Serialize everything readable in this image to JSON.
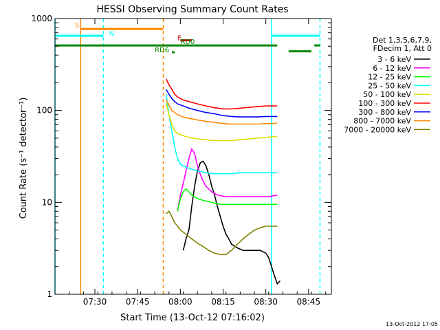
{
  "chart_data": {
    "type": "line",
    "title": "HESSI Observing Summary Count Rates",
    "xlabel": "Start Time (13-Oct-12 07:16:02)",
    "ylabel": "Count Rate (s⁻¹ detector⁻¹)",
    "y_scale": "log",
    "xlim_minutes_after_0716": [
      0,
      97
    ],
    "ylim": [
      1,
      1000
    ],
    "x_ticks": [
      {
        "label": "07:30",
        "t": 14
      },
      {
        "label": "07:45",
        "t": 29
      },
      {
        "label": "08:00",
        "t": 44
      },
      {
        "label": "08:15",
        "t": 59
      },
      {
        "label": "08:30",
        "t": 74
      },
      {
        "label": "08:45",
        "t": 89
      }
    ],
    "y_ticks": [
      {
        "label": "1",
        "value": 1
      },
      {
        "label": "10",
        "value": 10
      },
      {
        "label": "100",
        "value": 100
      },
      {
        "label": "1000",
        "value": 1000
      }
    ],
    "legend_header": [
      "Det 1,3,5,6,7,9,",
      "FDecim 1, Att 0"
    ],
    "legend_placement": "right",
    "series": [
      {
        "name": "3 - 6 keV",
        "color": "#000000",
        "points": [
          [
            45,
            3
          ],
          [
            46,
            4
          ],
          [
            47,
            5
          ],
          [
            48,
            9
          ],
          [
            49,
            15
          ],
          [
            50,
            22
          ],
          [
            51,
            27
          ],
          [
            52,
            28
          ],
          [
            53,
            25
          ],
          [
            54,
            20
          ],
          [
            55,
            15
          ],
          [
            56,
            12
          ],
          [
            57,
            9
          ],
          [
            58,
            7
          ],
          [
            59,
            5.5
          ],
          [
            60,
            4.5
          ],
          [
            61,
            4
          ],
          [
            62,
            3.5
          ],
          [
            64,
            3.2
          ],
          [
            66,
            3
          ],
          [
            68,
            3
          ],
          [
            70,
            3
          ],
          [
            72,
            3
          ],
          [
            74,
            2.8
          ],
          [
            75,
            2.5
          ],
          [
            76,
            2
          ],
          [
            77,
            1.6
          ],
          [
            78,
            1.3
          ],
          [
            79,
            1.4
          ]
        ]
      },
      {
        "name": "6 - 12 keV",
        "color": "#ff00ff",
        "points": [
          [
            43,
            8
          ],
          [
            44,
            12
          ],
          [
            45,
            16
          ],
          [
            46,
            22
          ],
          [
            47,
            30
          ],
          [
            48,
            38
          ],
          [
            49,
            34
          ],
          [
            50,
            25
          ],
          [
            51,
            20
          ],
          [
            52,
            17
          ],
          [
            53,
            15
          ],
          [
            55,
            13
          ],
          [
            57,
            12
          ],
          [
            60,
            11.5
          ],
          [
            63,
            11.5
          ],
          [
            66,
            11.5
          ],
          [
            69,
            11.5
          ],
          [
            72,
            11.5
          ],
          [
            75,
            11.5
          ],
          [
            78,
            12
          ]
        ]
      },
      {
        "name": "12 - 25 keV",
        "color": "#00ff00",
        "points": [
          [
            43,
            8
          ],
          [
            44,
            11
          ],
          [
            45,
            13
          ],
          [
            46,
            14
          ],
          [
            47,
            13
          ],
          [
            48,
            12
          ],
          [
            50,
            11
          ],
          [
            52,
            10.5
          ],
          [
            55,
            10
          ],
          [
            58,
            9.5
          ],
          [
            61,
            9.5
          ],
          [
            64,
            9.5
          ],
          [
            67,
            9.5
          ],
          [
            70,
            9.5
          ],
          [
            73,
            9.5
          ],
          [
            76,
            9.5
          ],
          [
            78,
            9.5
          ]
        ]
      },
      {
        "name": "25 - 50 keV",
        "color": "#00ffff",
        "points": [
          [
            39,
            150
          ],
          [
            40,
            90
          ],
          [
            41,
            60
          ],
          [
            42,
            40
          ],
          [
            43,
            30
          ],
          [
            44,
            26
          ],
          [
            45,
            25
          ],
          [
            46,
            24
          ],
          [
            48,
            23
          ],
          [
            50,
            22
          ],
          [
            53,
            21
          ],
          [
            56,
            20.5
          ],
          [
            59,
            20.5
          ],
          [
            62,
            20.5
          ],
          [
            65,
            21
          ],
          [
            68,
            21
          ],
          [
            71,
            21
          ],
          [
            74,
            21
          ],
          [
            77,
            21
          ],
          [
            78,
            21
          ]
        ]
      },
      {
        "name": "50 - 100 keV",
        "color": "#dddd00",
        "points": [
          [
            39,
            120
          ],
          [
            40,
            90
          ],
          [
            41,
            70
          ],
          [
            42,
            60
          ],
          [
            43,
            56
          ],
          [
            45,
            53
          ],
          [
            47,
            51
          ],
          [
            50,
            49
          ],
          [
            53,
            48
          ],
          [
            56,
            47
          ],
          [
            59,
            47
          ],
          [
            62,
            47
          ],
          [
            65,
            48
          ],
          [
            68,
            49
          ],
          [
            71,
            50
          ],
          [
            74,
            51
          ],
          [
            77,
            52
          ],
          [
            78,
            52
          ]
        ]
      },
      {
        "name": "100 - 300 keV",
        "color": "#ff0000",
        "points": [
          [
            39,
            220
          ],
          [
            40,
            190
          ],
          [
            41,
            170
          ],
          [
            42,
            150
          ],
          [
            43,
            140
          ],
          [
            45,
            130
          ],
          [
            47,
            125
          ],
          [
            50,
            118
          ],
          [
            53,
            112
          ],
          [
            56,
            107
          ],
          [
            59,
            104
          ],
          [
            62,
            104
          ],
          [
            65,
            106
          ],
          [
            68,
            108
          ],
          [
            71,
            110
          ],
          [
            74,
            112
          ],
          [
            77,
            112
          ],
          [
            78,
            112
          ]
        ]
      },
      {
        "name": "300 - 800 keV",
        "color": "#0000ff",
        "points": [
          [
            39,
            170
          ],
          [
            40,
            150
          ],
          [
            41,
            135
          ],
          [
            42,
            125
          ],
          [
            43,
            118
          ],
          [
            45,
            112
          ],
          [
            47,
            106
          ],
          [
            50,
            100
          ],
          [
            53,
            95
          ],
          [
            56,
            92
          ],
          [
            59,
            88
          ],
          [
            62,
            86
          ],
          [
            65,
            85
          ],
          [
            68,
            85
          ],
          [
            71,
            85
          ],
          [
            74,
            86
          ],
          [
            77,
            86
          ],
          [
            78,
            86
          ]
        ]
      },
      {
        "name": "800 - 7000 keV",
        "color": "#ff8800",
        "points": [
          [
            39,
            130
          ],
          [
            40,
            115
          ],
          [
            41,
            100
          ],
          [
            42,
            95
          ],
          [
            43,
            90
          ],
          [
            45,
            85
          ],
          [
            47,
            82
          ],
          [
            50,
            79
          ],
          [
            53,
            76
          ],
          [
            56,
            74
          ],
          [
            59,
            72
          ],
          [
            62,
            71
          ],
          [
            65,
            71
          ],
          [
            68,
            71
          ],
          [
            71,
            71
          ],
          [
            74,
            72
          ],
          [
            77,
            72
          ],
          [
            78,
            73
          ]
        ]
      },
      {
        "name": "7000 - 20000 keV",
        "color": "#808000",
        "points": [
          [
            39,
            7.5
          ],
          [
            40,
            8
          ],
          [
            41,
            7
          ],
          [
            42,
            6
          ],
          [
            43,
            5.5
          ],
          [
            44,
            5
          ],
          [
            46,
            4.5
          ],
          [
            48,
            4
          ],
          [
            50,
            3.6
          ],
          [
            52,
            3.3
          ],
          [
            54,
            3
          ],
          [
            56,
            2.8
          ],
          [
            58,
            2.7
          ],
          [
            60,
            2.7
          ],
          [
            62,
            3
          ],
          [
            64,
            3.5
          ],
          [
            66,
            4
          ],
          [
            68,
            4.5
          ],
          [
            70,
            5
          ],
          [
            72,
            5.3
          ],
          [
            74,
            5.5
          ],
          [
            76,
            5.5
          ],
          [
            78,
            5.5
          ]
        ]
      }
    ],
    "annotations": [
      {
        "text": "S",
        "color": "#ff8800",
        "t": 7,
        "y": 800
      },
      {
        "text": "N",
        "color": "#00ffff",
        "t": 19,
        "y": 650
      },
      {
        "text": "F",
        "color": "#cc0000",
        "t": 43,
        "y": 580
      },
      {
        "text": "RD6",
        "color": "#008800",
        "t": 35,
        "y": 430
      },
      {
        "text": "RD0",
        "color": "#008800",
        "t": 44,
        "y": 530
      }
    ],
    "state_bars": [
      {
        "color": "#ff8800",
        "t0": 9,
        "t1": 38,
        "y": 770
      },
      {
        "color": "#00ffff",
        "t0": 0,
        "t1": 17,
        "y": 650
      },
      {
        "color": "#00ffff",
        "t0": 76,
        "t1": 93,
        "y": 650
      },
      {
        "color": "#008800",
        "t0": 0,
        "t1": 78,
        "y": 510
      },
      {
        "color": "#008800",
        "t0": 82,
        "t1": 90,
        "y": 440
      },
      {
        "color": "#008800",
        "t0": 91,
        "t1": 93,
        "y": 510
      },
      {
        "color": "#cc0000",
        "t0": 44,
        "t1": 48,
        "y": 580
      },
      {
        "color": "#008800",
        "t0": 41,
        "t1": 42,
        "y": 430
      }
    ],
    "vertical_markers": [
      {
        "color": "#00ffff",
        "t": 0,
        "style": "solid"
      },
      {
        "color": "#ff8800",
        "t": 9,
        "style": "solid"
      },
      {
        "color": "#00ffff",
        "t": 17,
        "style": "dashed"
      },
      {
        "color": "#ff8800",
        "t": 38,
        "style": "dashed"
      },
      {
        "color": "#00ffff",
        "t": 76,
        "style": "solid"
      },
      {
        "color": "#00ffff",
        "t": 93,
        "style": "dashed"
      }
    ]
  },
  "timestamp": "13-Oct-2012 17:05"
}
